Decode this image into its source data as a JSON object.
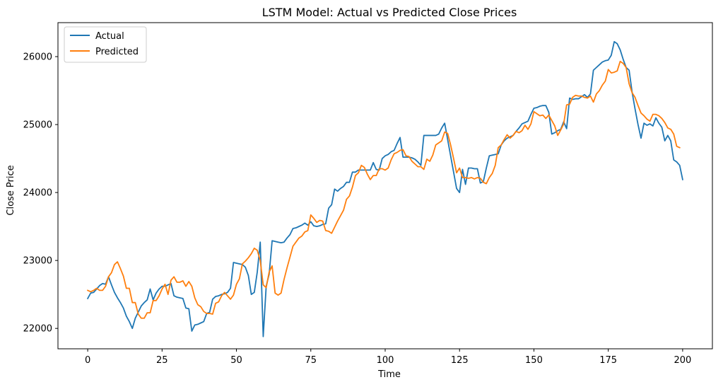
{
  "chart_data": {
    "type": "line",
    "title": "LSTM Model: Actual vs Predicted Close Prices",
    "xlabel": "Time",
    "ylabel": "Close Price",
    "xlim": [
      -10,
      210
    ],
    "ylim": [
      21700,
      26500
    ],
    "xticks": [
      0,
      25,
      50,
      75,
      100,
      125,
      150,
      175,
      200
    ],
    "yticks": [
      22000,
      23000,
      24000,
      25000,
      26000
    ],
    "grid": false,
    "legend_position": "top-left",
    "series": [
      {
        "name": "Actual",
        "color": "#1f77b4",
        "values": [
          22440,
          22520,
          22530,
          22580,
          22630,
          22660,
          22650,
          22760,
          22640,
          22530,
          22450,
          22380,
          22300,
          22180,
          22100,
          22000,
          22150,
          22240,
          22330,
          22380,
          22420,
          22580,
          22420,
          22520,
          22580,
          22620,
          22620,
          22640,
          22660,
          22480,
          22460,
          22450,
          22440,
          22300,
          22290,
          21960,
          22050,
          22060,
          22080,
          22100,
          22220,
          22240,
          22430,
          22470,
          22480,
          22500,
          22510,
          22530,
          22590,
          22970,
          22960,
          22950,
          22940,
          22900,
          22780,
          22500,
          22530,
          22830,
          23270,
          21880,
          22620,
          22800,
          23290,
          23280,
          23270,
          23260,
          23270,
          23330,
          23380,
          23470,
          23480,
          23500,
          23520,
          23550,
          23520,
          23570,
          23510,
          23500,
          23510,
          23530,
          23540,
          23770,
          23820,
          24050,
          24020,
          24060,
          24090,
          24150,
          24150,
          24300,
          24300,
          24330,
          24330,
          24330,
          24330,
          24330,
          24440,
          24340,
          24330,
          24500,
          24540,
          24560,
          24600,
          24620,
          24720,
          24810,
          24520,
          24520,
          24520,
          24510,
          24490,
          24450,
          24400,
          24840,
          24840,
          24840,
          24840,
          24840,
          24860,
          24950,
          25020,
          24780,
          24540,
          24300,
          24060,
          24000,
          24340,
          24120,
          24360,
          24360,
          24350,
          24350,
          24140,
          24160,
          24360,
          24540,
          24550,
          24560,
          24570,
          24700,
          24760,
          24800,
          24820,
          24840,
          24900,
          24950,
          25010,
          25030,
          25050,
          25150,
          25240,
          25250,
          25270,
          25280,
          25280,
          25180,
          24860,
          24880,
          24910,
          24930,
          25040,
          24940,
          25390,
          25370,
          25380,
          25380,
          25410,
          25440,
          25400,
          25450,
          25800,
          25840,
          25880,
          25920,
          25940,
          25950,
          26020,
          26220,
          26190,
          26100,
          25960,
          25840,
          25800,
          25480,
          25230,
          25000,
          24800,
          25020,
          24990,
          25010,
          24980,
          25100,
          25020,
          24960,
          24760,
          24840,
          24760,
          24480,
          24450,
          24400,
          24190
        ]
      },
      {
        "name": "Predicted",
        "color": "#ff7f0e",
        "values": [
          22560,
          22540,
          22560,
          22590,
          22560,
          22560,
          22620,
          22760,
          22820,
          22940,
          22980,
          22880,
          22770,
          22590,
          22590,
          22380,
          22380,
          22210,
          22150,
          22150,
          22230,
          22230,
          22410,
          22410,
          22480,
          22580,
          22650,
          22500,
          22710,
          22760,
          22680,
          22680,
          22700,
          22620,
          22690,
          22620,
          22450,
          22350,
          22320,
          22250,
          22220,
          22220,
          22210,
          22370,
          22390,
          22480,
          22530,
          22480,
          22430,
          22490,
          22650,
          22730,
          22950,
          22990,
          23040,
          23100,
          23180,
          23150,
          23000,
          22640,
          22600,
          22830,
          22920,
          22520,
          22490,
          22520,
          22720,
          22890,
          23050,
          23210,
          23270,
          23330,
          23360,
          23420,
          23440,
          23670,
          23620,
          23560,
          23590,
          23580,
          23440,
          23430,
          23400,
          23490,
          23580,
          23660,
          23740,
          23900,
          23950,
          24080,
          24250,
          24290,
          24400,
          24370,
          24270,
          24190,
          24250,
          24250,
          24350,
          24350,
          24330,
          24360,
          24480,
          24570,
          24590,
          24620,
          24630,
          24540,
          24530,
          24460,
          24420,
          24380,
          24380,
          24340,
          24490,
          24460,
          24550,
          24700,
          24730,
          24760,
          24890,
          24870,
          24700,
          24500,
          24290,
          24360,
          24220,
          24220,
          24210,
          24220,
          24200,
          24220,
          24210,
          24150,
          24130,
          24220,
          24280,
          24400,
          24660,
          24700,
          24780,
          24850,
          24800,
          24840,
          24900,
          24880,
          24910,
          24990,
          24930,
          25010,
          25190,
          25160,
          25130,
          25140,
          25090,
          25140,
          25060,
          24980,
          24840,
          24920,
          25010,
          25290,
          25300,
          25400,
          25430,
          25420,
          25420,
          25400,
          25390,
          25420,
          25330,
          25450,
          25500,
          25580,
          25640,
          25810,
          25760,
          25770,
          25790,
          25930,
          25900,
          25840,
          25600,
          25470,
          25400,
          25280,
          25170,
          25130,
          25080,
          25050,
          25150,
          25150,
          25130,
          25090,
          25030,
          24950,
          24930,
          24860,
          24680,
          24660
        ]
      }
    ]
  }
}
